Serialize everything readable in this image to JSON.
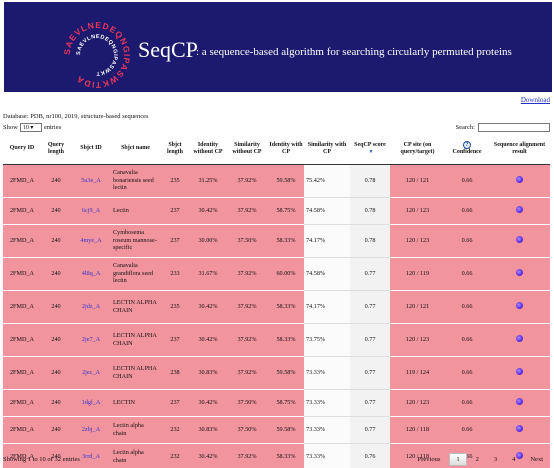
{
  "header": {
    "brand": "SeqCP",
    "tagline": ": a sequence-based algorithm for searching circularly permuted proteins",
    "logo_ring_text": "SAEVLNEDEQNGIPASWKTIDAMKT"
  },
  "download_label": "Download",
  "database_line": "Database: PDB, nr100, 2019, structure-based sequences",
  "length_control": {
    "prefix": "Show",
    "value": "10",
    "suffix": "entries"
  },
  "search": {
    "label": "Search:",
    "value": ""
  },
  "columns": [
    "Query ID",
    "Query length",
    "Sbjct ID",
    "Sbjct name",
    "Sbjct length",
    "Identity without CP",
    "Similarity without CP",
    "Identity with CP",
    "Similarity with CP",
    "SeqCP score",
    "CP site (on query/target)",
    "Confidence",
    "Sequence alignment result"
  ],
  "rows": [
    {
      "qid": "2FMD_A",
      "qlen": "240",
      "sid": "5u3e_A",
      "sname": "Canavalia bonariensis seed lectin",
      "slen": "235",
      "idwo": "31.25%",
      "simwo": "37.92%",
      "idw": "59.58%",
      "simw": "75.42%",
      "score": "0.78",
      "cp": "120 / 121",
      "conf": "0.66"
    },
    {
      "qid": "2FMD_A",
      "qlen": "240",
      "sid": "6cj9_A",
      "sname": "Lectin",
      "slen": "237",
      "idwo": "30.42%",
      "simwo": "37.92%",
      "idw": "58.75%",
      "simw": "74.58%",
      "score": "0.78",
      "cp": "120 / 123",
      "conf": "0.66"
    },
    {
      "qid": "2FMD_A",
      "qlen": "240",
      "sid": "4mye_A",
      "sname": "Cymbosema roseum mannose-specific",
      "slen": "237",
      "idwo": "30.00%",
      "simwo": "37.50%",
      "idw": "58.33%",
      "simw": "74.17%",
      "score": "0.78",
      "cp": "120 / 123",
      "conf": "0.66"
    },
    {
      "qid": "2FMD_A",
      "qlen": "240",
      "sid": "4l8q_A",
      "sname": "Canavalia grandiflora seed lectin",
      "slen": "233",
      "idwo": "31.67%",
      "simwo": "37.92%",
      "idw": "60.00%",
      "simw": "74.58%",
      "score": "0.77",
      "cp": "120 / 119",
      "conf": "0.66"
    },
    {
      "qid": "2FMD_A",
      "qlen": "240",
      "sid": "2jdz_A",
      "sname": "LECTIN ALPHA CHAIN",
      "slen": "235",
      "idwo": "30.42%",
      "simwo": "37.92%",
      "idw": "58.33%",
      "simw": "74.17%",
      "score": "0.77",
      "cp": "120 / 121",
      "conf": "0.66"
    },
    {
      "qid": "2FMD_A",
      "qlen": "240",
      "sid": "2je7_A",
      "sname": "LECTIN ALPHA CHAIN",
      "slen": "237",
      "idwo": "30.42%",
      "simwo": "37.92%",
      "idw": "58.33%",
      "simw": "73.75%",
      "score": "0.77",
      "cp": "120 / 123",
      "conf": "0.66"
    },
    {
      "qid": "2FMD_A",
      "qlen": "240",
      "sid": "2jec_A",
      "sname": "LECTIN ALPHA CHAIN",
      "slen": "238",
      "idwo": "30.83%",
      "simwo": "37.92%",
      "idw": "59.58%",
      "simw": "73.33%",
      "score": "0.77",
      "cp": "119 / 124",
      "conf": "0.66"
    },
    {
      "qid": "2FMD_A",
      "qlen": "240",
      "sid": "1dgl_A",
      "sname": "LECTIN",
      "slen": "237",
      "idwo": "30.42%",
      "simwo": "37.50%",
      "idw": "58.75%",
      "simw": "73.33%",
      "score": "0.77",
      "cp": "120 / 123",
      "conf": "0.66"
    },
    {
      "qid": "2FMD_A",
      "qlen": "240",
      "sid": "2zbj_A",
      "sname": "Lectin alpha chain",
      "slen": "232",
      "idwo": "30.83%",
      "simwo": "37.50%",
      "idw": "59.58%",
      "simw": "73.33%",
      "score": "0.77",
      "cp": "120 / 118",
      "conf": "0.66"
    },
    {
      "qid": "2FMD_A",
      "qlen": "240",
      "sid": "3rrd_A",
      "sname": "Lectin alpha chain",
      "slen": "232",
      "idwo": "30.42%",
      "simwo": "37.92%",
      "idw": "58.33%",
      "simw": "73.33%",
      "score": "0.76",
      "cp": "120 / 118",
      "conf": "0.66"
    }
  ],
  "footer": {
    "info": "Showing 1 to 10 of 32 entries",
    "previous": "Previous",
    "pages": [
      "1",
      "2",
      "3",
      "4"
    ],
    "next": "Next"
  },
  "colors": {
    "banner": "#1b1a6e",
    "row_highlight": "#f2949d",
    "link": "#3333cc"
  }
}
